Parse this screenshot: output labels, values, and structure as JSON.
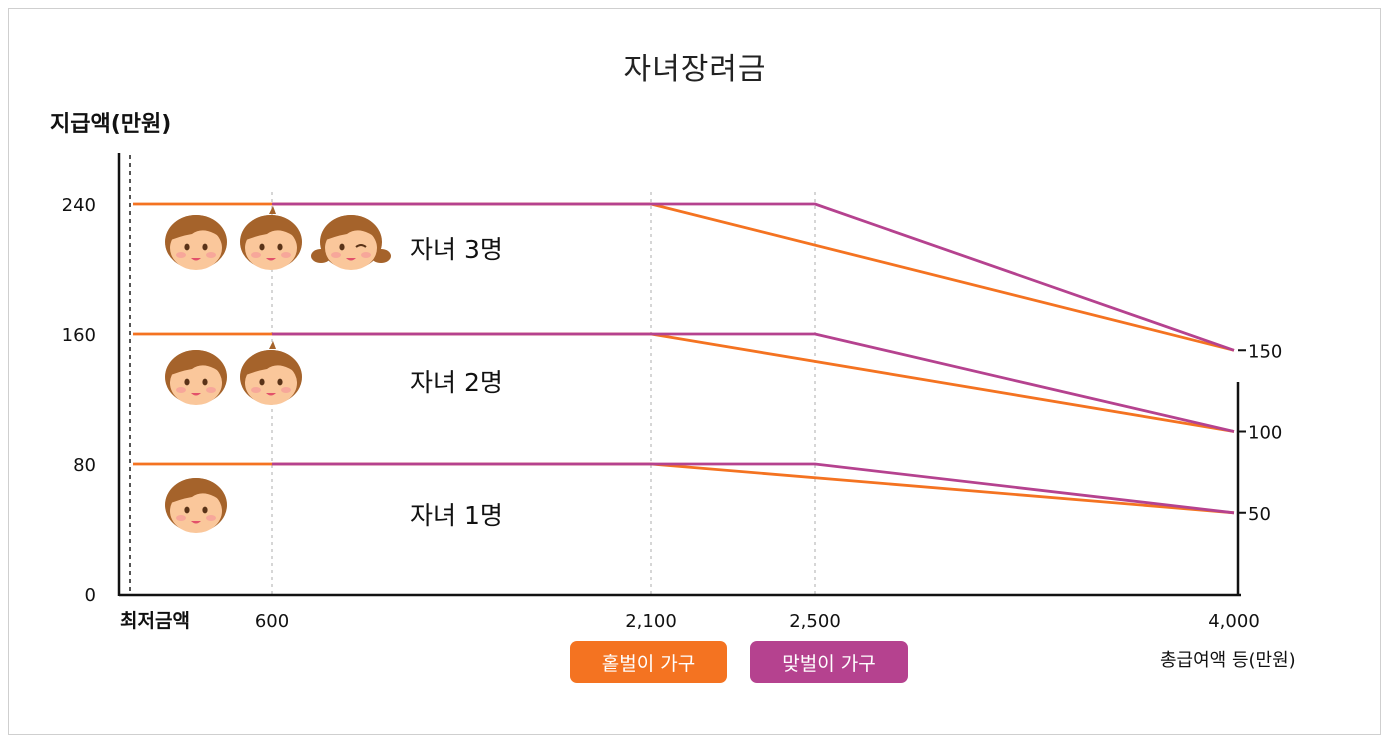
{
  "chart_data": {
    "type": "line",
    "title": "자녀장려금",
    "ylabel": "지급액(만원)",
    "xlabel": "총급여액 등(만원)",
    "x_ticks": [
      "최저금액",
      "600",
      "2,100",
      "2,500",
      "4,000"
    ],
    "y_ticks_left": [
      "0",
      "80",
      "160",
      "240"
    ],
    "y_ticks_right": [
      "50",
      "100",
      "150"
    ],
    "ylim": [
      0,
      240
    ],
    "groups": [
      {
        "label": "자녀 1명",
        "faces": 1
      },
      {
        "label": "자녀 2명",
        "faces": 2
      },
      {
        "label": "자녀 3명",
        "faces": 3
      }
    ],
    "series": [
      {
        "name": "홑벌이 가구",
        "color": "#F47321",
        "lines": [
          {
            "x": [
              0,
              600,
              2100,
              4000
            ],
            "y": [
              80,
              80,
              80,
              50
            ]
          },
          {
            "x": [
              0,
              600,
              2100,
              4000
            ],
            "y": [
              160,
              160,
              160,
              100
            ]
          },
          {
            "x": [
              0,
              600,
              2100,
              4000
            ],
            "y": [
              240,
              240,
              240,
              150
            ]
          }
        ]
      },
      {
        "name": "맞벌이 가구",
        "color": "#B5428F",
        "lines": [
          {
            "x": [
              600,
              2500,
              4000
            ],
            "y": [
              80,
              80,
              50
            ]
          },
          {
            "x": [
              600,
              2500,
              4000
            ],
            "y": [
              160,
              160,
              100
            ]
          },
          {
            "x": [
              600,
              2500,
              4000
            ],
            "y": [
              240,
              240,
              150
            ]
          }
        ]
      }
    ]
  },
  "colors": {
    "single": "#F47321",
    "dual": "#B5428F",
    "skin": "#FAC79B",
    "hair": "#A5632B"
  }
}
